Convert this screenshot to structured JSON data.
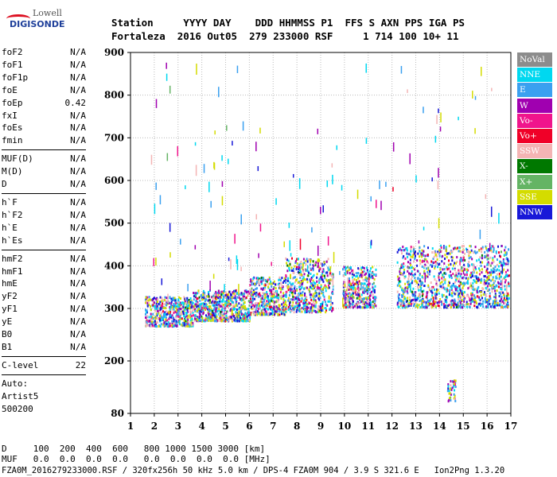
{
  "logo": {
    "line1": "Lowell",
    "line2": "DIGISONDE"
  },
  "header": {
    "row1": "Station     YYYY DAY    DDD HHMMSS P1  FFS S AXN PPS IGA PS",
    "row2": "Fortaleza  2016 Out05  279 233000 RSF     1 714 100 10+ 11"
  },
  "params": {
    "group1": [
      {
        "label": "foF2",
        "value": "N/A"
      },
      {
        "label": "foF1",
        "value": "N/A"
      },
      {
        "label": "foF1p",
        "value": "N/A"
      },
      {
        "label": "foE",
        "value": "N/A"
      },
      {
        "label": "foEp",
        "value": "0.42"
      },
      {
        "label": "fxI",
        "value": "N/A"
      },
      {
        "label": "foEs",
        "value": "N/A"
      },
      {
        "label": "fmin",
        "value": "N/A"
      }
    ],
    "group2": [
      {
        "label": "MUF(D)",
        "value": "N/A"
      },
      {
        "label": "M(D)",
        "value": "N/A"
      },
      {
        "label": "D",
        "value": "N/A"
      }
    ],
    "group3": [
      {
        "label": "h`F",
        "value": "N/A"
      },
      {
        "label": "h`F2",
        "value": "N/A"
      },
      {
        "label": "h`E",
        "value": "N/A"
      },
      {
        "label": "h`Es",
        "value": "N/A"
      }
    ],
    "group4": [
      {
        "label": "hmF2",
        "value": "N/A"
      },
      {
        "label": "hmF1",
        "value": "N/A"
      },
      {
        "label": "hmE",
        "value": "N/A"
      },
      {
        "label": "yF2",
        "value": "N/A"
      },
      {
        "label": "yF1",
        "value": "N/A"
      },
      {
        "label": "yE",
        "value": "N/A"
      },
      {
        "label": "B0",
        "value": "N/A"
      },
      {
        "label": "B1",
        "value": "N/A"
      }
    ],
    "clevel": {
      "label": "C-level",
      "value": "22"
    },
    "auto": [
      "Auto:",
      "Artist5",
      "500200"
    ]
  },
  "legend": [
    {
      "label": "NoVal",
      "color": "#8c8c8c"
    },
    {
      "label": "NNE",
      "color": "#00d8f0"
    },
    {
      "label": "E",
      "color": "#3aa0f0"
    },
    {
      "label": "W",
      "color": "#a000b0"
    },
    {
      "label": "Vo-",
      "color": "#f0148c"
    },
    {
      "label": "Vo+",
      "color": "#f00028"
    },
    {
      "label": "SSW",
      "color": "#f4b4b4"
    },
    {
      "label": "X-",
      "color": "#007800"
    },
    {
      "label": "X+",
      "color": "#64b464"
    },
    {
      "label": "SSE",
      "color": "#d4dc00"
    },
    {
      "label": "NNW",
      "color": "#1818d8"
    }
  ],
  "chart_data": {
    "type": "scatter",
    "x_ticks": [
      "1",
      "2",
      "3",
      "4",
      "5",
      "6",
      "7",
      "8",
      "9",
      "10",
      "11",
      "12",
      "13",
      "14",
      "15",
      "16",
      "17"
    ],
    "y_ticks": [
      "80",
      "200",
      "300",
      "400",
      "500",
      "600",
      "700",
      "800",
      "900"
    ],
    "xlim": [
      1,
      17
    ],
    "ylim": [
      80,
      900
    ],
    "grid": true,
    "legend_position": "right",
    "echo_clusters": [
      {
        "f_range": [
          1.6,
          3.6
        ],
        "h_range": [
          268,
          330
        ]
      },
      {
        "f_range": [
          3.6,
          6.0
        ],
        "h_range": [
          278,
          345
        ]
      },
      {
        "f_range": [
          6.0,
          7.5
        ],
        "h_range": [
          290,
          375
        ]
      },
      {
        "f_range": [
          7.5,
          9.5
        ],
        "h_range": [
          295,
          420
        ]
      },
      {
        "f_range": [
          9.9,
          11.3
        ],
        "h_range": [
          305,
          400
        ]
      },
      {
        "f_range": [
          12.2,
          16.9
        ],
        "h_range": [
          305,
          450
        ]
      }
    ]
  },
  "dtable": {
    "row1": "D     100  200  400  600   800 1000 1500 3000 [km]",
    "row2": "MUF   0.0  0.0  0.0  0.0   0.0  0.0  0.0  0.0 [MHz]"
  },
  "footer": "FZA0M_2016279233000.RSF / 320fx256h 50 kHz 5.0 km / DPS-4 FZA0M 904 / 3.9 S 321.6 E   Ion2Png 1.3.20"
}
